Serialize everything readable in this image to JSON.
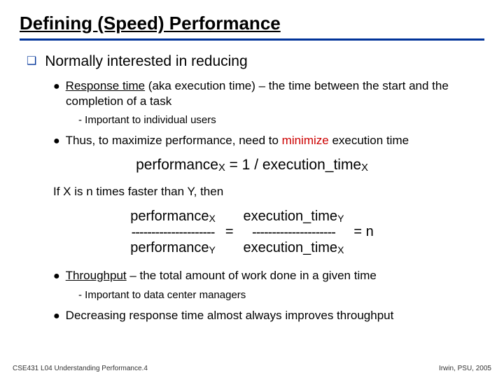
{
  "title": "Defining (Speed) Performance",
  "topline": "Normally interested in reducing",
  "bullet1_pre": "Response time",
  "bullet1_rest": " (aka execution time) – the time between the start and the completion of a task",
  "sub1": "- Important to individual users",
  "bullet2_pre": "Thus, to maximize performance, need to ",
  "bullet2_red": "minimize",
  "bullet2_post": " execution time",
  "formula1_a": "performance",
  "formula1_b": " = 1 / execution_time",
  "plain": "If X is n times faster than Y, then",
  "frac_num1": "performance",
  "frac_dash1": "---------------------",
  "frac_den1": "performance",
  "eq": "=",
  "frac_num2": "execution_time",
  "frac_dash2": "---------------------",
  "frac_den2": "execution_time",
  "eqn": "= n",
  "bullet3_pre": "Throughput",
  "bullet3_rest": " – the total amount of work done in a given time",
  "sub3": "- Important to data center managers",
  "bullet4": "Decreasing response time almost always improves throughput",
  "footer_left": "CSE431 L04 Understanding Performance.4",
  "footer_right": "Irwin, PSU, 2005",
  "subX": "X",
  "subY": "Y",
  "colors": {
    "accent": "#003399",
    "highlight": "#cc0000",
    "text": "#000000",
    "bg": "#ffffff"
  }
}
